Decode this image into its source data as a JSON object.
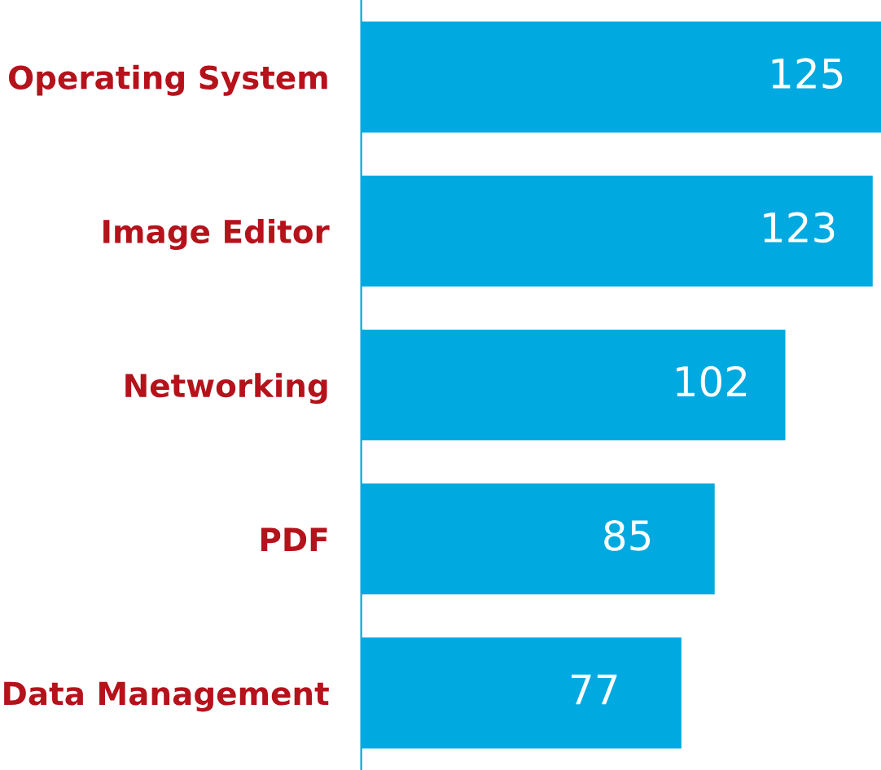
{
  "chart_data": {
    "type": "bar",
    "orientation": "horizontal",
    "categories": [
      "Operating System",
      "Image Editor",
      "Networking",
      "PDF",
      "Data Management"
    ],
    "values": [
      125,
      123,
      102,
      85,
      77
    ],
    "color": "#00a9e0",
    "data_labels": true,
    "grid": false,
    "legend": false
  }
}
